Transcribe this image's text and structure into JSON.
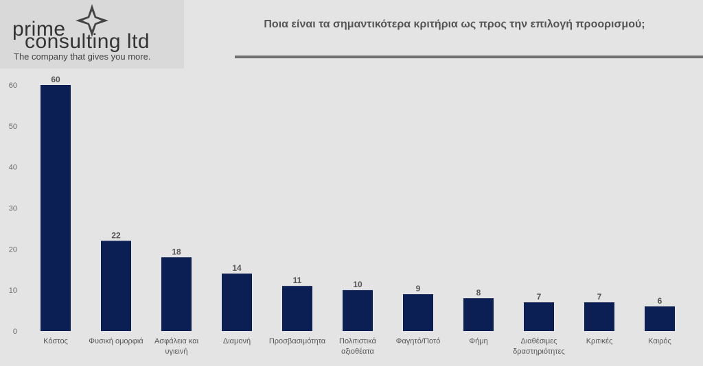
{
  "logo": {
    "line1": "prime",
    "line2": "consulting ltd",
    "tagline": "The company that gives you more.",
    "icon": "star-diamond-icon"
  },
  "header": {
    "title": "Ποια είναι τα σημαντικότερα κριτήρια ως προς την επιλογή προορισμού;"
  },
  "chart_data": {
    "type": "bar",
    "title": "Ποια είναι τα σημαντικότερα κριτήρια ως προς την επιλογή προορισμού;",
    "xlabel": "",
    "ylabel": "",
    "categories": [
      [
        "Κόστος"
      ],
      [
        "Φυσική ομορφιά"
      ],
      [
        "Ασφάλεια και",
        "υγιεινή"
      ],
      [
        "Διαμονή"
      ],
      [
        "Προσβασιμότητα"
      ],
      [
        "Πολιτιστικά",
        "αξιοθέατα"
      ],
      [
        "Φαγητό/Ποτό"
      ],
      [
        "Φήμη"
      ],
      [
        "Διαθέσιμες",
        "δραστηριότητες"
      ],
      [
        "Κριτικές"
      ],
      [
        "Καιρός"
      ]
    ],
    "values": [
      60,
      22,
      18,
      14,
      11,
      10,
      9,
      8,
      7,
      7,
      6
    ],
    "ylim": [
      0,
      60
    ],
    "yticks": [
      0,
      10,
      20,
      30,
      40,
      50,
      60
    ],
    "grid": false,
    "legend": "none",
    "bar_color": "#0c1f55"
  }
}
